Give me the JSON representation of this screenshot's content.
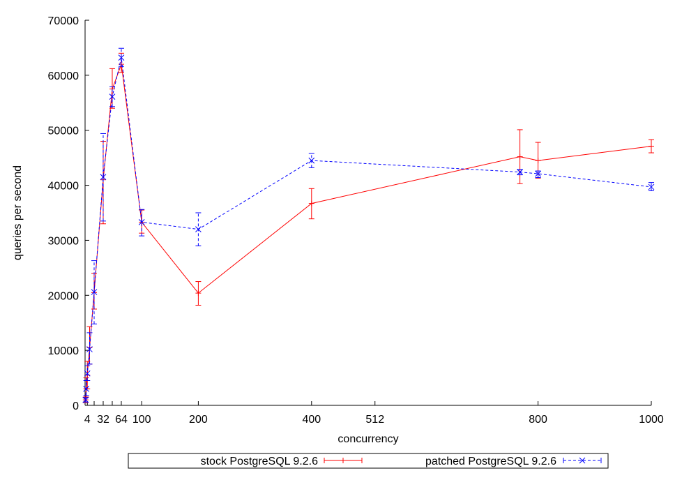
{
  "chart_data": {
    "type": "line",
    "title": "",
    "xlabel": "concurrency",
    "ylabel": "queries per second",
    "xlim": [
      0,
      1000
    ],
    "ylim": [
      0,
      70000
    ],
    "x_ticks": [
      4,
      32,
      64,
      100,
      200,
      400,
      512,
      800,
      1000
    ],
    "x_tick_labels": [
      "4",
      "32",
      "64",
      "100",
      "200",
      "400",
      "512",
      "800",
      "1000"
    ],
    "x_minor_ticks": [
      16,
      48
    ],
    "y_ticks": [
      0,
      10000,
      20000,
      30000,
      40000,
      50000,
      60000,
      70000
    ],
    "y_tick_labels": [
      "0",
      "10000",
      "20000",
      "30000",
      "40000",
      "50000",
      "60000",
      "70000"
    ],
    "grid": false,
    "legend_position": "bottom",
    "series": [
      {
        "name": "stock PostgreSQL 9.2.6",
        "color": "#ff0000",
        "line_style": "solid",
        "marker": "plus",
        "points": [
          {
            "x": 1,
            "y": 1000,
            "low": 500,
            "high": 1500
          },
          {
            "x": 2,
            "y": 3000,
            "low": 1500,
            "high": 5000
          },
          {
            "x": 4,
            "y": 5500,
            "low": 3000,
            "high": 8000
          },
          {
            "x": 8,
            "y": 10500,
            "low": 7500,
            "high": 14300
          },
          {
            "x": 16,
            "y": 20500,
            "low": 17500,
            "high": 24000
          },
          {
            "x": 32,
            "y": 41000,
            "low": 33000,
            "high": 48000
          },
          {
            "x": 48,
            "y": 57500,
            "low": 54000,
            "high": 61200
          },
          {
            "x": 64,
            "y": 62000,
            "low": 60500,
            "high": 64000
          },
          {
            "x": 100,
            "y": 33300,
            "low": 31300,
            "high": 35500
          },
          {
            "x": 200,
            "y": 20400,
            "low": 18200,
            "high": 22500
          },
          {
            "x": 400,
            "y": 36700,
            "low": 33900,
            "high": 39400
          },
          {
            "x": 768,
            "y": 45200,
            "low": 40300,
            "high": 50100
          },
          {
            "x": 800,
            "y": 44500,
            "low": 41300,
            "high": 47800
          },
          {
            "x": 1000,
            "y": 47100,
            "low": 45900,
            "high": 48300
          }
        ]
      },
      {
        "name": "patched PostgreSQL 9.2.6",
        "color": "#0000ff",
        "line_style": "dashed",
        "marker": "cross",
        "points": [
          {
            "x": 1,
            "y": 1000,
            "low": 600,
            "high": 1400
          },
          {
            "x": 2,
            "y": 3000,
            "low": 1800,
            "high": 4500
          },
          {
            "x": 4,
            "y": 5800,
            "low": 4500,
            "high": 7200
          },
          {
            "x": 8,
            "y": 10200,
            "low": 7500,
            "high": 13200
          },
          {
            "x": 16,
            "y": 20600,
            "low": 14800,
            "high": 26300
          },
          {
            "x": 32,
            "y": 41500,
            "low": 33500,
            "high": 49400
          },
          {
            "x": 48,
            "y": 56100,
            "low": 54300,
            "high": 57900
          },
          {
            "x": 64,
            "y": 63200,
            "low": 61600,
            "high": 64900
          },
          {
            "x": 100,
            "y": 33300,
            "low": 30800,
            "high": 35600
          },
          {
            "x": 200,
            "y": 32000,
            "low": 29000,
            "high": 35000
          },
          {
            "x": 400,
            "y": 44500,
            "low": 43200,
            "high": 45800
          },
          {
            "x": 768,
            "y": 42400,
            "low": 41900,
            "high": 42900
          },
          {
            "x": 800,
            "y": 42100,
            "low": 41400,
            "high": 42600
          },
          {
            "x": 1000,
            "y": 39700,
            "low": 39000,
            "high": 40500
          }
        ]
      }
    ]
  }
}
